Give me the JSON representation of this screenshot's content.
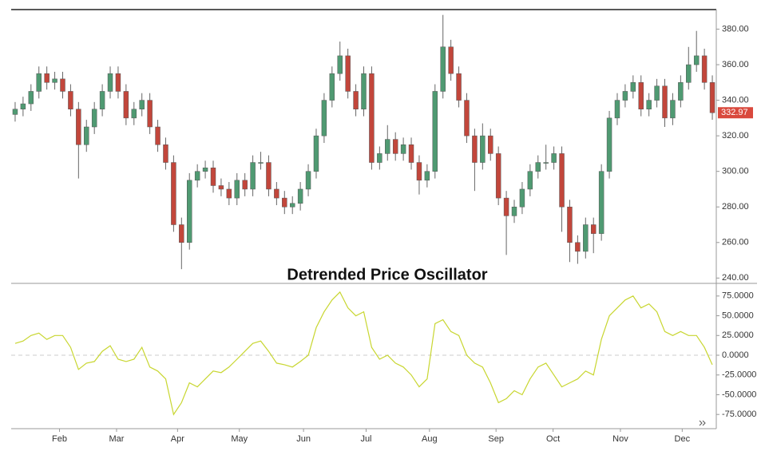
{
  "chart_data": [
    {
      "type": "candlestick",
      "title": "Detrended Price Oscillator",
      "open": [
        332,
        335,
        338,
        345,
        355,
        350,
        352,
        345,
        335,
        315,
        325,
        335,
        345,
        355,
        345,
        330,
        335,
        340,
        325,
        315,
        305,
        270,
        260,
        295,
        300,
        302,
        292,
        290,
        285,
        295,
        290,
        305,
        305,
        290,
        285,
        280,
        282,
        290,
        300,
        320,
        340,
        355,
        365,
        345,
        335,
        355,
        305,
        310,
        318,
        310,
        315,
        305,
        295,
        300,
        345,
        370,
        355,
        340,
        320,
        305,
        320,
        310,
        285,
        275,
        280,
        290,
        300,
        305,
        305,
        310,
        280,
        260,
        255,
        270,
        265,
        300,
        330,
        340,
        345,
        350,
        335,
        340,
        348,
        330,
        340,
        350,
        360,
        365,
        350
      ],
      "high": [
        339,
        342,
        349,
        359,
        359,
        356,
        356,
        349,
        339,
        329,
        339,
        349,
        359,
        359,
        349,
        339,
        344,
        344,
        329,
        319,
        309,
        274,
        299,
        304,
        306,
        306,
        296,
        294,
        299,
        299,
        309,
        311,
        309,
        294,
        289,
        286,
        294,
        304,
        324,
        344,
        359,
        373,
        369,
        349,
        359,
        359,
        314,
        326,
        322,
        319,
        319,
        309,
        304,
        349,
        388,
        374,
        359,
        344,
        324,
        327,
        324,
        314,
        289,
        284,
        294,
        304,
        309,
        315,
        314,
        314,
        284,
        264,
        274,
        274,
        304,
        334,
        344,
        349,
        354,
        354,
        344,
        352,
        352,
        344,
        354,
        370,
        379,
        369,
        354
      ],
      "low": [
        328,
        331,
        334,
        341,
        346,
        346,
        341,
        331,
        296,
        311,
        321,
        331,
        341,
        341,
        326,
        326,
        331,
        321,
        311,
        301,
        266,
        245,
        256,
        291,
        296,
        288,
        286,
        281,
        281,
        286,
        286,
        301,
        286,
        281,
        276,
        276,
        278,
        286,
        296,
        316,
        336,
        351,
        341,
        331,
        331,
        301,
        301,
        306,
        306,
        306,
        301,
        287,
        291,
        296,
        341,
        351,
        336,
        316,
        289,
        301,
        306,
        281,
        253,
        271,
        276,
        286,
        296,
        301,
        301,
        266,
        249,
        248,
        251,
        254,
        261,
        296,
        326,
        336,
        341,
        331,
        331,
        336,
        325,
        326,
        336,
        346,
        356,
        346,
        329
      ],
      "close": [
        335,
        338,
        345,
        355,
        350,
        352,
        345,
        335,
        315,
        325,
        335,
        345,
        355,
        345,
        330,
        335,
        340,
        325,
        315,
        305,
        270,
        260,
        295,
        300,
        302,
        292,
        290,
        285,
        295,
        290,
        305,
        305,
        290,
        285,
        280,
        282,
        290,
        300,
        320,
        340,
        355,
        365,
        345,
        335,
        355,
        305,
        310,
        318,
        310,
        315,
        305,
        295,
        300,
        345,
        370,
        355,
        340,
        320,
        305,
        320,
        310,
        285,
        275,
        280,
        290,
        300,
        305,
        305,
        310,
        280,
        260,
        255,
        270,
        265,
        300,
        330,
        340,
        345,
        350,
        335,
        340,
        348,
        330,
        340,
        350,
        360,
        365,
        350,
        332.97
      ],
      "up_color": "#4f9a72",
      "down_color": "#c2463b",
      "last_price_color": "#d9493d",
      "xlim": [
        0,
        89
      ],
      "ylim": [
        237,
        391
      ],
      "yticks": [
        {
          "value": 240,
          "label": "240.00"
        },
        {
          "value": 260,
          "label": "260.00"
        },
        {
          "value": 280,
          "label": "280.00"
        },
        {
          "value": 300,
          "label": "300.00"
        },
        {
          "value": 320,
          "label": "320.00"
        },
        {
          "value": 340,
          "label": "340.00"
        },
        {
          "value": 360,
          "label": "360.00"
        },
        {
          "value": 380,
          "label": "380.00"
        }
      ]
    },
    {
      "type": "line",
      "color": "#c8d630",
      "values": [
        15,
        18,
        25,
        28,
        20,
        25,
        25,
        10,
        -18,
        -10,
        -8,
        5,
        12,
        -5,
        -8,
        -5,
        10,
        -15,
        -20,
        -30,
        -75,
        -60,
        -35,
        -40,
        -30,
        -20,
        -22,
        -15,
        -5,
        5,
        15,
        18,
        5,
        -10,
        -12,
        -15,
        -8,
        0,
        35,
        55,
        70,
        80,
        60,
        50,
        55,
        10,
        -5,
        0,
        -10,
        -15,
        -25,
        -40,
        -30,
        40,
        45,
        30,
        25,
        0,
        -10,
        -15,
        -35,
        -60,
        -55,
        -45,
        -50,
        -30,
        -15,
        -10,
        -25,
        -40,
        -35,
        -30,
        -20,
        -25,
        20,
        50,
        60,
        70,
        75,
        60,
        65,
        55,
        30,
        25,
        30,
        25,
        25,
        10,
        -12
      ],
      "xlim": [
        0,
        89
      ],
      "xticks": [
        {
          "value": 6.1,
          "label": "Feb"
        },
        {
          "value": 13.3,
          "label": "Mar"
        },
        {
          "value": 21.0,
          "label": "Apr"
        },
        {
          "value": 28.8,
          "label": "May"
        },
        {
          "value": 36.9,
          "label": "Jun"
        },
        {
          "value": 44.8,
          "label": "Jul"
        },
        {
          "value": 52.8,
          "label": "Aug"
        },
        {
          "value": 61.2,
          "label": "Sep"
        },
        {
          "value": 68.4,
          "label": "Oct"
        },
        {
          "value": 76.9,
          "label": "Nov"
        },
        {
          "value": 84.7,
          "label": "Dec"
        }
      ],
      "ylim": [
        -93,
        91
      ],
      "yticks": [
        {
          "value": -75,
          "label": "-75.0000"
        },
        {
          "value": -50,
          "label": "-50.0000"
        },
        {
          "value": -25,
          "label": "-25.0000"
        },
        {
          "value": 0,
          "label": "0.0000"
        },
        {
          "value": 25,
          "label": "25.0000"
        },
        {
          "value": 50,
          "label": "50.0000"
        },
        {
          "value": 75,
          "label": "75.0000"
        }
      ],
      "zero_line": true
    }
  ]
}
